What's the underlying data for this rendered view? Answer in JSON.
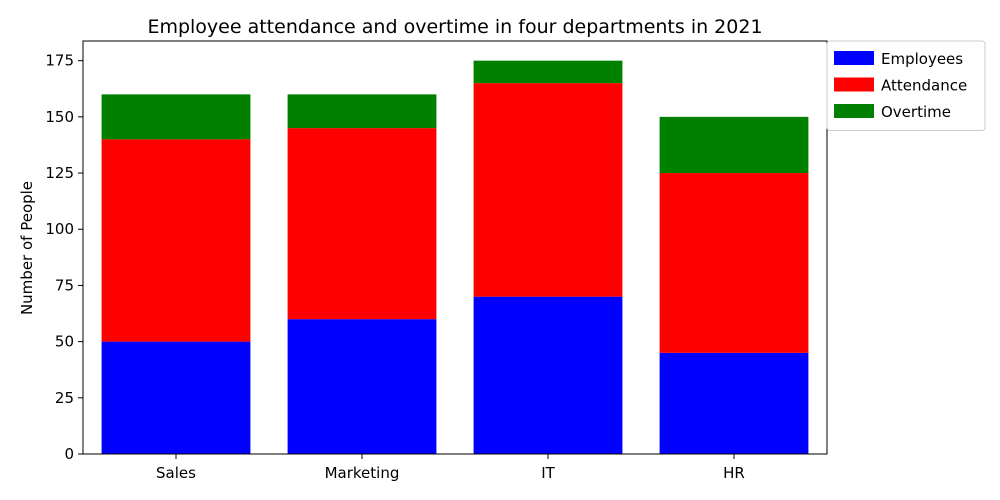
{
  "chart_data": {
    "type": "bar",
    "stacked": true,
    "title": "Employee attendance and overtime in four departments in 2021",
    "xlabel": "",
    "ylabel": "Number of People",
    "categories": [
      "Sales",
      "Marketing",
      "IT",
      "HR"
    ],
    "series": [
      {
        "name": "Employees",
        "values": [
          50,
          60,
          70,
          45
        ],
        "color": "#0000ff"
      },
      {
        "name": "Attendance",
        "values": [
          90,
          85,
          95,
          80
        ],
        "color": "#ff0000"
      },
      {
        "name": "Overtime",
        "values": [
          20,
          15,
          10,
          25
        ],
        "color": "#008000"
      }
    ],
    "ylim": [
      0,
      183.75
    ],
    "yticks": [
      0,
      25,
      50,
      75,
      100,
      125,
      150,
      175
    ],
    "grid": false,
    "legend_position": "outside-top-right"
  }
}
